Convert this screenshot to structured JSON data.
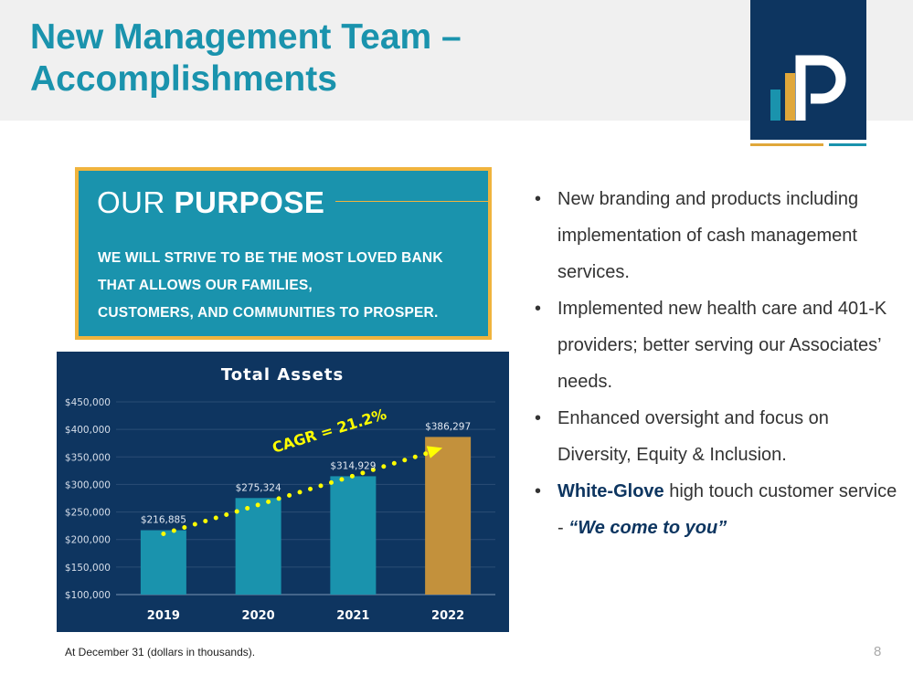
{
  "slide": {
    "title_line1": "New Management Team –",
    "title_line2": "Accomplishments",
    "page_number": "8",
    "footnote": "At December 31 (dollars in thousands)."
  },
  "logo": {
    "name": "bank-logo",
    "colors": {
      "bg": "#0d3560",
      "bar1": "#1a93ad",
      "bar2": "#e0a73a",
      "letter": "#ffffff"
    }
  },
  "purpose": {
    "heading_light": "OUR ",
    "heading_bold": "PURPOSE",
    "lines": [
      "WE WILL STRIVE TO BE THE MOST LOVED BANK",
      "THAT ALLOWS OUR FAMILIES,",
      "CUSTOMERS, AND COMMUNITIES TO PROSPER."
    ]
  },
  "bullets": [
    {
      "text": "New branding and products including implementation of cash management services."
    },
    {
      "text": "Implemented new health care and 401-K providers; better serving our Associates’ needs."
    },
    {
      "text": "Enhanced oversight and focus on Diversity, Equity & Inclusion."
    },
    {
      "bold": "White-Glove",
      "text": " high touch customer service - ",
      "quote": "“We come to you”"
    }
  ],
  "colors": {
    "teal": "#1a93ad",
    "navy": "#0d3560",
    "gold": "#f0b43d",
    "bar_highlight": "#c3913c",
    "trend": "#ffff00"
  },
  "chart_data": {
    "type": "bar",
    "title": "Total Assets",
    "categories": [
      "2019",
      "2020",
      "2021",
      "2022"
    ],
    "values": [
      216885,
      275324,
      314929,
      386297
    ],
    "value_labels": [
      "$216,885",
      "$275,324",
      "$314,929",
      "$386,297"
    ],
    "highlight_index": 3,
    "y_ticks": [
      "$100,000",
      "$150,000",
      "$200,000",
      "$250,000",
      "$300,000",
      "$350,000",
      "$400,000",
      "$450,000"
    ],
    "y_tick_values": [
      100000,
      150000,
      200000,
      250000,
      300000,
      350000,
      400000,
      450000
    ],
    "ylim": [
      100000,
      450000
    ],
    "annotation": "CAGR = 21.2%",
    "trend": {
      "from": "2019",
      "to": "2022",
      "style": "dotted arrow"
    },
    "grid": true,
    "xlabel": "",
    "ylabel": ""
  }
}
